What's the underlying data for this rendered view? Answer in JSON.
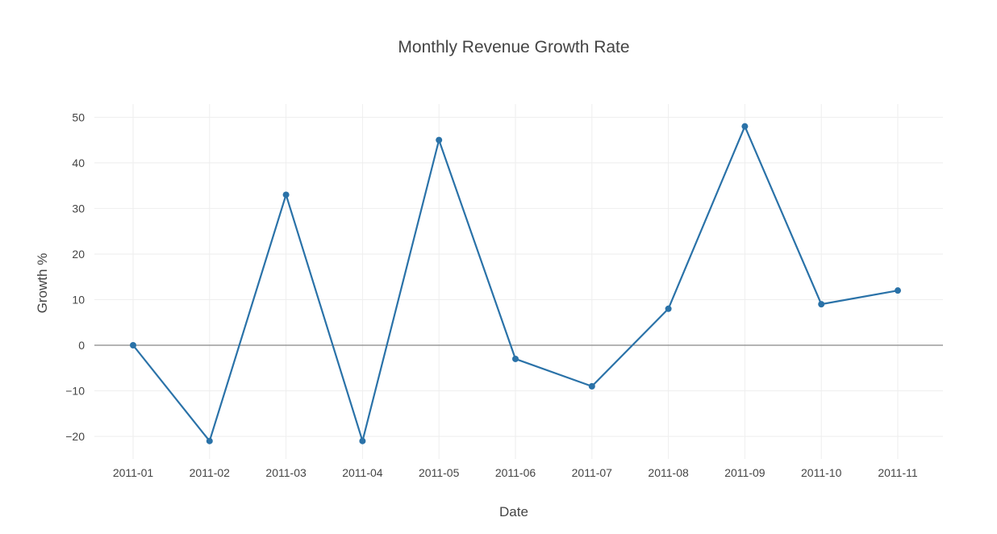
{
  "chart_data": {
    "type": "line",
    "title": "Monthly Revenue Growth Rate",
    "xlabel": "Date",
    "ylabel": "Growth %",
    "categories": [
      "2011-01",
      "2011-02",
      "2011-03",
      "2011-04",
      "2011-05",
      "2011-06",
      "2011-07",
      "2011-08",
      "2011-09",
      "2011-10",
      "2011-11"
    ],
    "series": [
      {
        "values": [
          0,
          -21,
          33,
          -21,
          45,
          -3,
          -9,
          8,
          48,
          9,
          12
        ]
      }
    ],
    "ylim": [
      -25,
      53
    ],
    "yticks": [
      -20,
      -10,
      0,
      10,
      20,
      30,
      40,
      50
    ],
    "ytick_labels": [
      "−20",
      "−10",
      "0",
      "10",
      "20",
      "30",
      "40",
      "50"
    ],
    "grid": true,
    "zero_line": true,
    "colors": {
      "line": "#2a72a8",
      "grid": "#eeeeee",
      "zero_line": "#888888",
      "text": "#444444"
    }
  }
}
